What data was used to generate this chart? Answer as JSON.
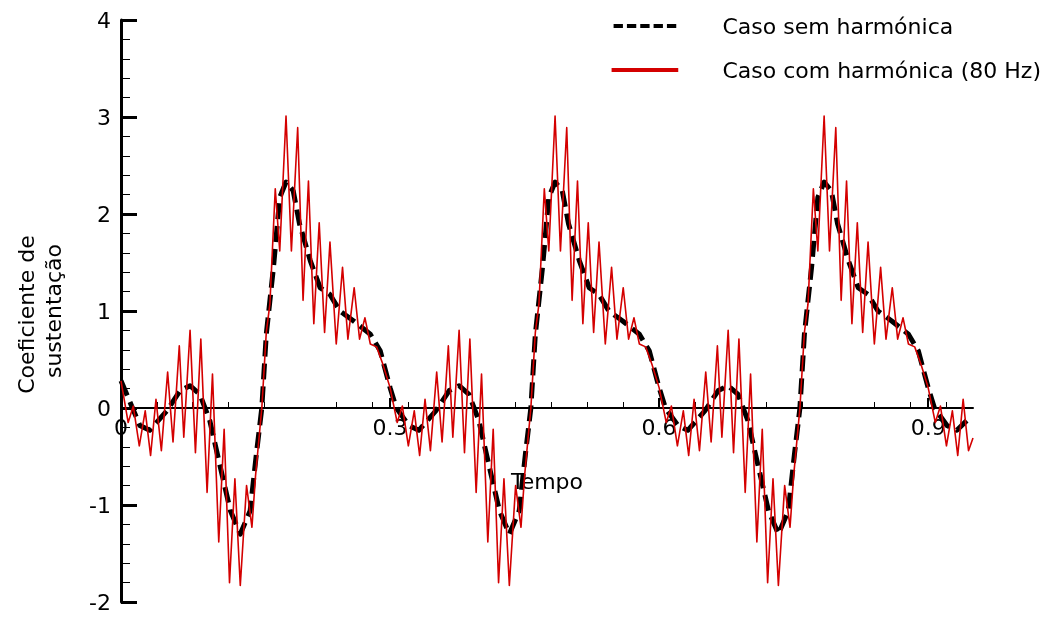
{
  "chart_data": {
    "type": "line",
    "xlabel": "Tempo",
    "ylabel": "Coeficiente de sustentação",
    "xlim": [
      0,
      0.95
    ],
    "xticks": [
      0,
      0.3,
      0.6,
      0.9
    ],
    "ylim": [
      -2,
      4
    ],
    "yticks": [
      -2,
      -1,
      0,
      1,
      2,
      3,
      4
    ],
    "grid": false,
    "legend": "top right",
    "marker": "none",
    "series": [
      {
        "name": "Caso sem harmónica",
        "color": "#000000",
        "line_style": "dashed",
        "x": [
          0,
          0.021,
          0.032,
          0.051,
          0.066,
          0.077,
          0.088,
          0.099,
          0.11,
          0.122,
          0.133,
          0.144,
          0.151,
          0.157,
          0.162,
          0.17,
          0.177,
          0.184,
          0.192,
          0.199,
          0.211,
          0.222,
          0.233,
          0.244,
          0.259,
          0.278,
          0.289,
          0.3,
          0.307,
          0.321,
          0.332,
          0.351,
          0.366,
          0.377,
          0.388,
          0.399,
          0.41,
          0.422,
          0.433,
          0.444,
          0.451,
          0.457,
          0.462,
          0.47,
          0.477,
          0.484,
          0.492,
          0.499,
          0.511,
          0.522,
          0.533,
          0.544,
          0.559,
          0.578,
          0.589,
          0.6,
          0.607,
          0.621,
          0.632,
          0.651,
          0.666,
          0.677,
          0.688,
          0.699,
          0.71,
          0.722,
          0.733,
          0.744,
          0.751,
          0.757,
          0.762,
          0.77,
          0.777,
          0.784,
          0.792,
          0.799,
          0.811,
          0.822,
          0.833,
          0.844,
          0.859,
          0.878,
          0.889,
          0.9,
          0.907,
          0.921,
          0.932,
          0.943
        ],
        "values": [
          0.28,
          -0.18,
          -0.23,
          -0.03,
          0.18,
          0.23,
          0.14,
          -0.13,
          -0.58,
          -1.06,
          -1.3,
          -1.06,
          -0.47,
          0,
          0.76,
          1.45,
          2.17,
          2.33,
          2.24,
          1.9,
          1.52,
          1.24,
          1.17,
          1,
          0.9,
          0.76,
          0.59,
          0.21,
          0,
          -0.18,
          -0.23,
          -0.03,
          0.18,
          0.23,
          0.14,
          -0.13,
          -0.58,
          -1.06,
          -1.3,
          -1.06,
          -0.47,
          0,
          0.76,
          1.45,
          2.17,
          2.33,
          2.24,
          1.9,
          1.52,
          1.24,
          1.17,
          1,
          0.9,
          0.76,
          0.59,
          0.21,
          0,
          -0.18,
          -0.23,
          -0.03,
          0.18,
          0.23,
          0.14,
          -0.13,
          -0.58,
          -1.06,
          -1.3,
          -1.06,
          -0.47,
          0,
          0.76,
          1.45,
          2.17,
          2.33,
          2.24,
          1.9,
          1.52,
          1.24,
          1.17,
          1,
          0.9,
          0.76,
          0.59,
          0.21,
          0,
          -0.18,
          -0.23,
          -0.13
        ]
      },
      {
        "name": "Caso com harmónica (80 Hz)",
        "color": "#d40000",
        "line_style": "solid",
        "x": [
          0,
          0.008,
          0.0137,
          0.0204,
          0.027,
          0.033,
          0.039,
          0.045,
          0.052,
          0.058,
          0.065,
          0.07,
          0.077,
          0.083,
          0.089,
          0.096,
          0.102,
          0.109,
          0.115,
          0.121,
          0.127,
          0.133,
          0.14,
          0.146,
          0.15,
          0.157,
          0.162,
          0.166,
          0.172,
          0.177,
          0.184,
          0.19,
          0.197,
          0.203,
          0.209,
          0.215,
          0.221,
          0.227,
          0.233,
          0.24,
          0.247,
          0.253,
          0.26,
          0.266,
          0.272,
          0.278,
          0.285,
          0.292,
          0.3,
          0.308,
          0.3137,
          0.3204,
          0.327,
          0.333,
          0.339,
          0.345,
          0.352,
          0.358,
          0.365,
          0.37,
          0.377,
          0.383,
          0.389,
          0.396,
          0.402,
          0.409,
          0.415,
          0.421,
          0.427,
          0.433,
          0.44,
          0.446,
          0.45,
          0.457,
          0.462,
          0.466,
          0.472,
          0.477,
          0.484,
          0.49,
          0.497,
          0.503,
          0.509,
          0.515,
          0.521,
          0.527,
          0.533,
          0.54,
          0.547,
          0.553,
          0.56,
          0.566,
          0.572,
          0.578,
          0.585,
          0.592,
          0.6,
          0.608,
          0.6137,
          0.6204,
          0.627,
          0.633,
          0.639,
          0.645,
          0.652,
          0.658,
          0.665,
          0.67,
          0.677,
          0.683,
          0.689,
          0.696,
          0.702,
          0.709,
          0.715,
          0.721,
          0.727,
          0.733,
          0.74,
          0.746,
          0.75,
          0.757,
          0.762,
          0.766,
          0.772,
          0.777,
          0.784,
          0.79,
          0.797,
          0.803,
          0.809,
          0.815,
          0.821,
          0.827,
          0.833,
          0.84,
          0.847,
          0.853,
          0.86,
          0.866,
          0.872,
          0.878,
          0.885,
          0.892,
          0.9,
          0.908,
          0.9137,
          0.9204,
          0.927,
          0.933,
          0.939,
          0.945,
          0.95
        ],
        "values": [
          0.28,
          -0.15,
          0.02,
          -0.39,
          -0.03,
          -0.49,
          0.09,
          -0.44,
          0.37,
          -0.35,
          0.64,
          -0.3,
          0.8,
          -0.46,
          0.71,
          -0.87,
          0.35,
          -1.38,
          -0.22,
          -1.8,
          -0.73,
          -1.83,
          -0.8,
          -1.23,
          -0.7,
          0,
          0.78,
          1.07,
          2.26,
          1.62,
          3.01,
          1.62,
          2.89,
          1.11,
          2.34,
          0.87,
          1.91,
          0.78,
          1.71,
          0.66,
          1.45,
          0.71,
          1.24,
          0.71,
          0.93,
          0.66,
          0.63,
          0.45,
          0.21,
          -0.15,
          0.02,
          -0.39,
          -0.03,
          -0.49,
          0.09,
          -0.44,
          0.37,
          -0.35,
          0.64,
          -0.3,
          0.8,
          -0.46,
          0.71,
          -0.87,
          0.35,
          -1.38,
          -0.22,
          -1.8,
          -0.73,
          -1.83,
          -0.8,
          -1.23,
          -0.7,
          0,
          0.78,
          1.07,
          2.26,
          1.62,
          3.01,
          1.62,
          2.89,
          1.11,
          2.34,
          0.87,
          1.91,
          0.78,
          1.71,
          0.66,
          1.45,
          0.71,
          1.24,
          0.71,
          0.93,
          0.66,
          0.63,
          0.45,
          0.21,
          -0.15,
          0.02,
          -0.39,
          -0.03,
          -0.49,
          0.09,
          -0.44,
          0.37,
          -0.35,
          0.64,
          -0.3,
          0.8,
          -0.46,
          0.71,
          -0.87,
          0.35,
          -1.38,
          -0.22,
          -1.8,
          -0.73,
          -1.83,
          -0.8,
          -1.23,
          -0.7,
          0,
          0.78,
          1.07,
          2.26,
          1.62,
          3.01,
          1.62,
          2.89,
          1.11,
          2.34,
          0.87,
          1.91,
          0.78,
          1.71,
          0.66,
          1.45,
          0.71,
          1.24,
          0.71,
          0.93,
          0.66,
          0.63,
          0.45,
          0.21,
          -0.15,
          0.02,
          -0.39,
          -0.03,
          -0.49,
          0.09,
          -0.44,
          -0.31
        ]
      }
    ]
  }
}
